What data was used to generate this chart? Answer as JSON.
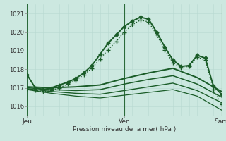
{
  "xlabel": "Pression niveau de la mer( hPa )",
  "background_color": "#cce8e0",
  "grid_minor_color": "#b8d8d0",
  "grid_major_color": "#9ac8bc",
  "line_color": "#1a5c28",
  "sep_color": "#2a6a3a",
  "ylim": [
    1015.5,
    1021.5
  ],
  "xlim": [
    0,
    48
  ],
  "yticks": [
    1016,
    1017,
    1018,
    1019,
    1020,
    1021
  ],
  "xtick_labels": [
    "Jeu",
    "Ven",
    "Sam"
  ],
  "xtick_positions": [
    0,
    24,
    48
  ],
  "series": [
    {
      "x": [
        0,
        2,
        4,
        6,
        8,
        10,
        12,
        14,
        16,
        18,
        20,
        22,
        24,
        26,
        28,
        30,
        32,
        34,
        36,
        38,
        40,
        42,
        44,
        46,
        48
      ],
      "y": [
        1017.7,
        1017.0,
        1016.9,
        1017.0,
        1017.15,
        1017.3,
        1017.5,
        1017.8,
        1018.2,
        1018.8,
        1019.4,
        1019.85,
        1020.3,
        1020.6,
        1020.8,
        1020.7,
        1020.0,
        1019.2,
        1018.5,
        1018.15,
        1018.2,
        1018.75,
        1018.6,
        1017.1,
        1016.65
      ],
      "marker": "D",
      "markersize": 2.5,
      "linewidth": 1.4,
      "style": "solid",
      "zorder": 5
    },
    {
      "x": [
        0,
        2,
        4,
        6,
        8,
        10,
        12,
        14,
        16,
        18,
        20,
        22,
        24,
        26,
        28,
        30,
        32,
        34,
        36,
        38,
        40,
        42,
        44,
        46,
        48
      ],
      "y": [
        1016.95,
        1016.85,
        1016.8,
        1016.85,
        1017.0,
        1017.2,
        1017.4,
        1017.7,
        1018.05,
        1018.55,
        1019.05,
        1019.5,
        1020.0,
        1020.4,
        1020.65,
        1020.55,
        1019.85,
        1019.05,
        1018.35,
        1018.1,
        1018.15,
        1018.65,
        1018.5,
        1016.9,
        1016.1
      ],
      "marker": "+",
      "markersize": 4,
      "linewidth": 1.0,
      "style": "dotted",
      "zorder": 4
    },
    {
      "x": [
        0,
        6,
        12,
        18,
        24,
        30,
        36,
        42,
        48
      ],
      "y": [
        1017.05,
        1017.0,
        1017.05,
        1017.15,
        1017.5,
        1017.8,
        1018.05,
        1017.55,
        1016.8
      ],
      "marker": null,
      "markersize": 0,
      "linewidth": 1.4,
      "style": "solid",
      "zorder": 3
    },
    {
      "x": [
        0,
        6,
        12,
        18,
        24,
        30,
        36,
        42,
        48
      ],
      "y": [
        1017.0,
        1016.9,
        1016.85,
        1016.9,
        1017.2,
        1017.45,
        1017.65,
        1017.2,
        1016.5
      ],
      "marker": null,
      "markersize": 0,
      "linewidth": 1.1,
      "style": "solid",
      "zorder": 3
    },
    {
      "x": [
        0,
        6,
        12,
        18,
        24,
        30,
        36,
        42,
        48
      ],
      "y": [
        1016.95,
        1016.8,
        1016.7,
        1016.65,
        1016.85,
        1017.05,
        1017.25,
        1016.85,
        1016.2
      ],
      "marker": null,
      "markersize": 0,
      "linewidth": 1.0,
      "style": "solid",
      "zorder": 3
    },
    {
      "x": [
        0,
        6,
        12,
        18,
        24,
        30,
        36,
        42,
        48
      ],
      "y": [
        1016.9,
        1016.7,
        1016.55,
        1016.45,
        1016.6,
        1016.75,
        1016.9,
        1016.55,
        1015.8
      ],
      "marker": null,
      "markersize": 0,
      "linewidth": 0.9,
      "style": "solid",
      "zorder": 3
    }
  ]
}
